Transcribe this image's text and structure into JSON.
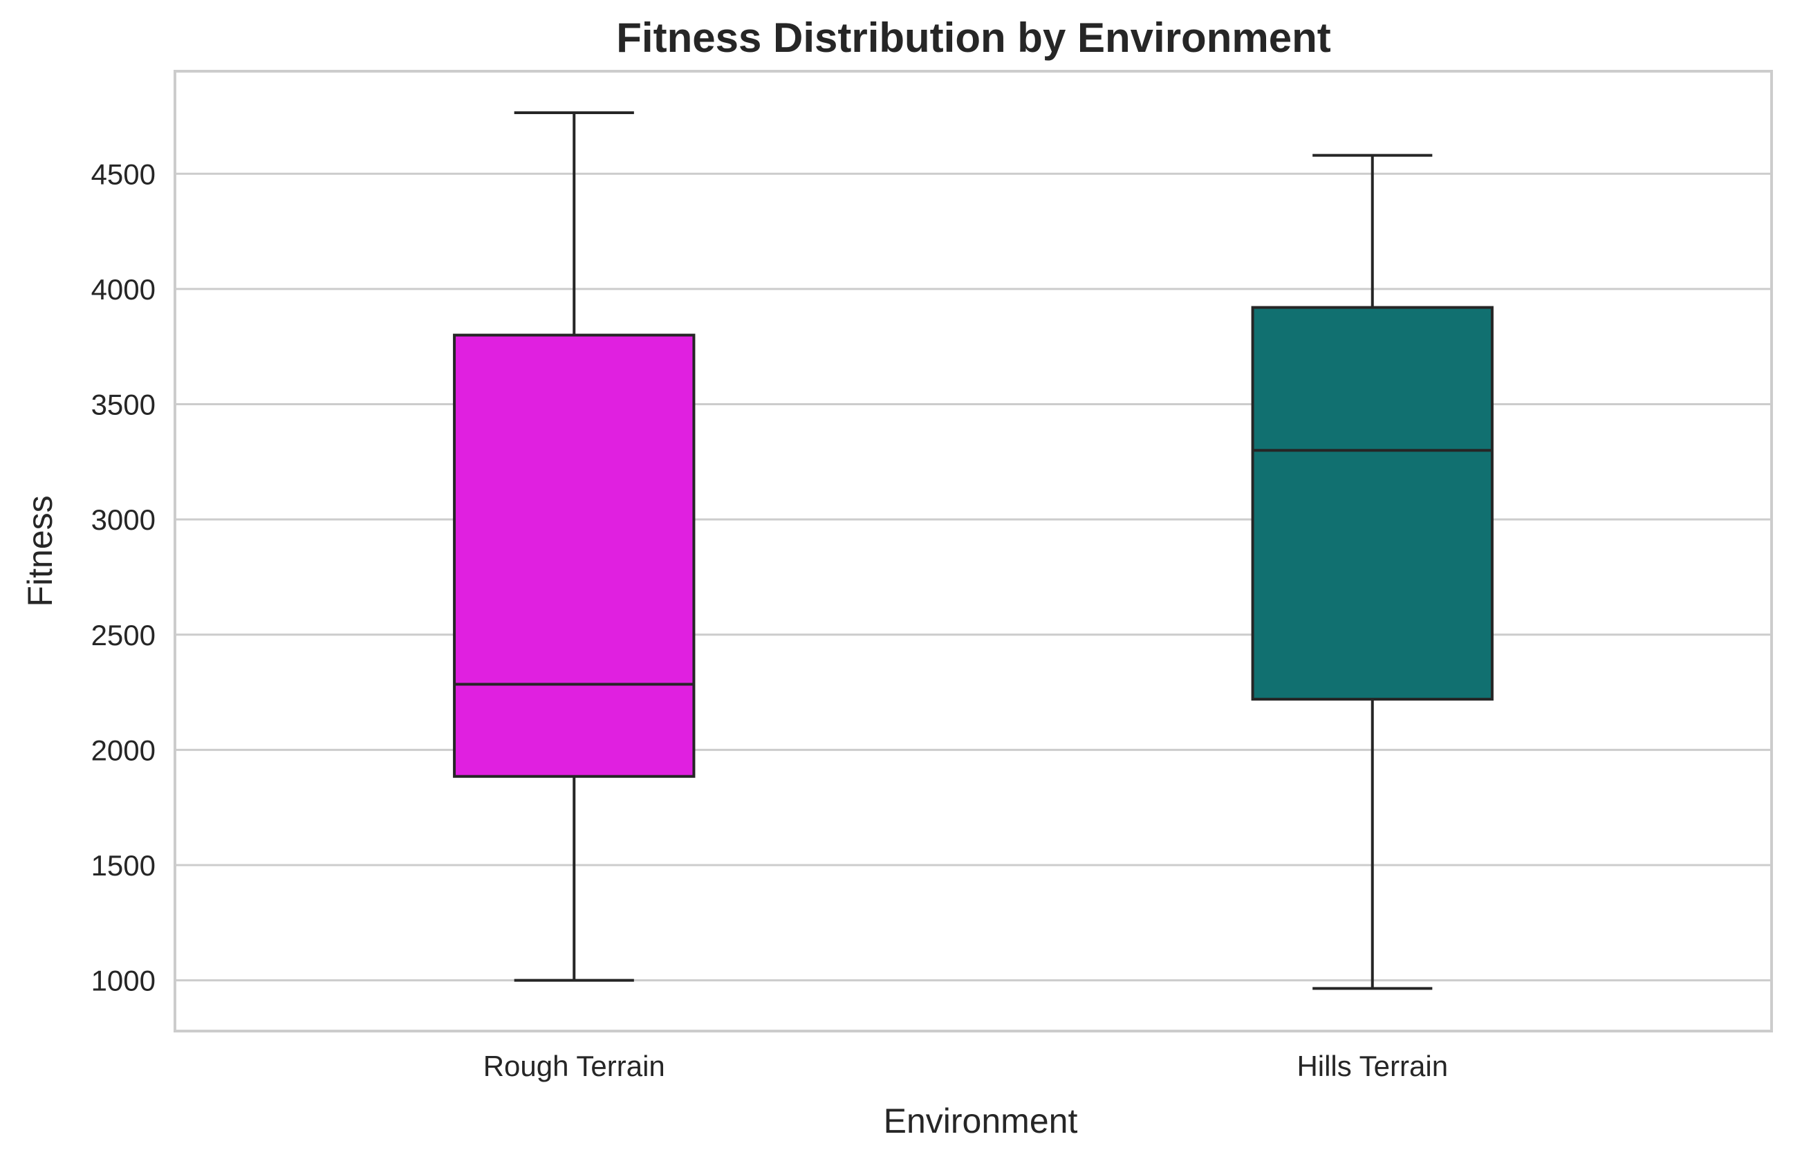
{
  "chart_data": {
    "type": "box",
    "title": "Fitness Distribution by Environment",
    "xlabel": "Environment",
    "ylabel": "Fitness",
    "ylim": [
      780,
      4945
    ],
    "yticks": [
      1000,
      1500,
      2000,
      2500,
      3000,
      3500,
      4000,
      4500
    ],
    "grid": true,
    "categories": [
      "Rough Terrain",
      "Hills Terrain"
    ],
    "boxes": [
      {
        "category": "Rough Terrain",
        "color": "#e020e0",
        "min": 1000,
        "q1": 1885,
        "median": 2285,
        "q3": 3800,
        "max": 4765
      },
      {
        "category": "Hills Terrain",
        "color": "#117070",
        "min": 965,
        "q1": 2220,
        "median": 3300,
        "q3": 3920,
        "max": 4580
      }
    ]
  }
}
